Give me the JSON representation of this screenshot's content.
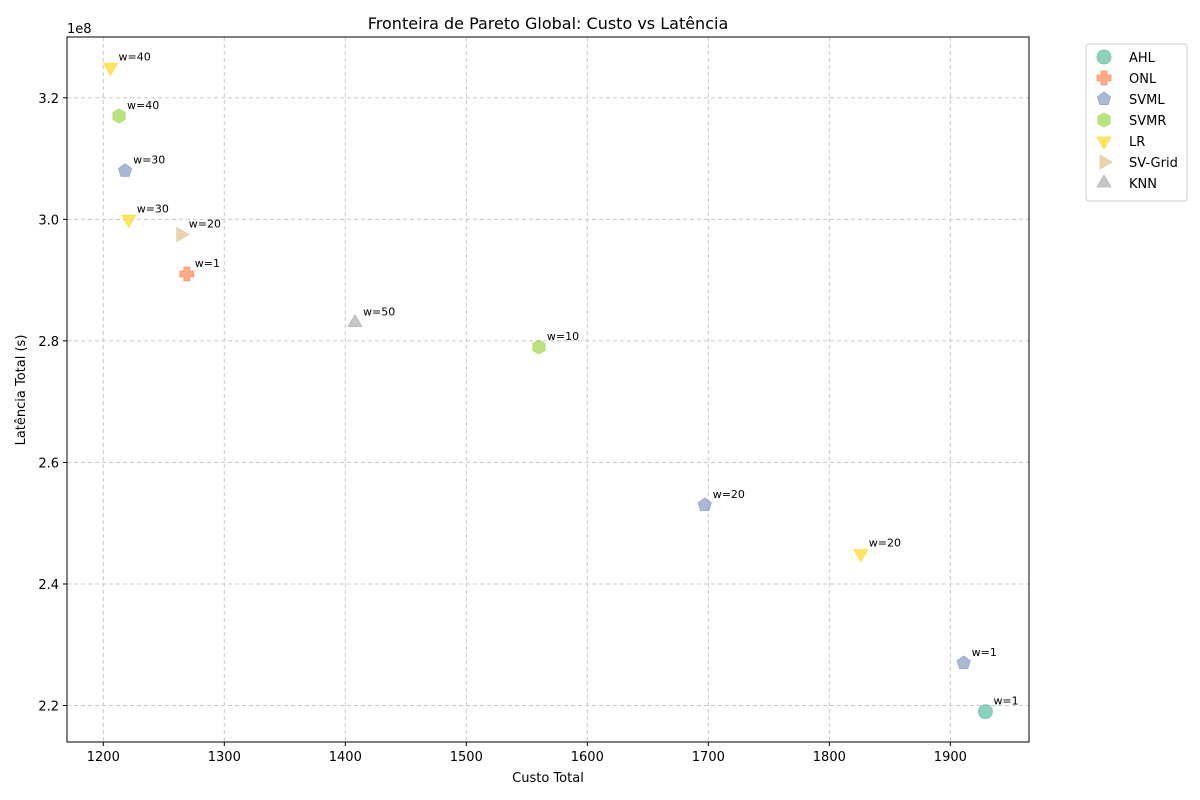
{
  "chart_data": {
    "type": "scatter",
    "title": "Fronteira de Pareto Global: Custo vs Latência",
    "xlabel": "Custo Total",
    "ylabel": "Latência Total (s)",
    "y_multiplier_label": "1e8",
    "xlim": [
      1170,
      1965
    ],
    "ylim": [
      2.14,
      3.3
    ],
    "x_ticks": [
      1200,
      1300,
      1400,
      1500,
      1600,
      1700,
      1800,
      1900
    ],
    "y_ticks": [
      2.2,
      2.4,
      2.6,
      2.8,
      3.0,
      3.2
    ],
    "grid": true,
    "legend_position": "outside-top-right",
    "series": [
      {
        "name": "AHL",
        "marker": "circle",
        "color": "#66c2a5",
        "points": [
          {
            "x": 1929,
            "y": 2.19,
            "label": "w=1"
          }
        ]
      },
      {
        "name": "ONL",
        "marker": "plus",
        "color": "#fc8d62",
        "points": [
          {
            "x": 1269,
            "y": 2.91,
            "label": "w=1"
          }
        ]
      },
      {
        "name": "SVML",
        "marker": "pentagon",
        "color": "#8da0cb",
        "points": [
          {
            "x": 1218,
            "y": 3.08,
            "label": "w=30"
          },
          {
            "x": 1697,
            "y": 2.53,
            "label": "w=20"
          },
          {
            "x": 1911,
            "y": 2.27,
            "label": "w=1"
          }
        ]
      },
      {
        "name": "SVMR",
        "marker": "hexagon",
        "color": "#a6d854",
        "points": [
          {
            "x": 1213,
            "y": 3.17,
            "label": "w=40"
          },
          {
            "x": 1560,
            "y": 2.79,
            "label": "w=10"
          }
        ]
      },
      {
        "name": "LR",
        "marker": "triangle-down",
        "color": "#ffd92f",
        "points": [
          {
            "x": 1206,
            "y": 3.25,
            "label": "w=40"
          },
          {
            "x": 1221,
            "y": 3.0,
            "label": "w=30"
          },
          {
            "x": 1826,
            "y": 2.45,
            "label": "w=20"
          }
        ]
      },
      {
        "name": "SV-Grid",
        "marker": "triangle-right",
        "color": "#e5c494",
        "points": [
          {
            "x": 1264,
            "y": 2.975,
            "label": "w=20"
          }
        ]
      },
      {
        "name": "KNN",
        "marker": "triangle-up",
        "color": "#b3b3b3",
        "points": [
          {
            "x": 1408,
            "y": 2.83,
            "label": "w=50"
          }
        ]
      }
    ]
  }
}
